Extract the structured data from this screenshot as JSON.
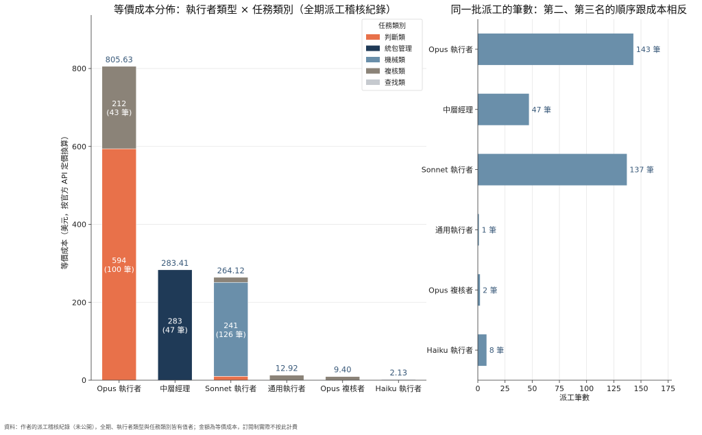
{
  "colors": {
    "judgment": "#e8714a",
    "orchestrate": "#1f3a57",
    "mechanical": "#6a8faa",
    "review": "#8b8378",
    "search": "#c6cacf",
    "hbar": "#6a8faa",
    "value_text": "#3a5a7a",
    "grid": "#e5e5e5"
  },
  "footnote": "資料：作者的派工稽核紀錄（未公開），全期、執行者類型與任務類別皆有值者；金額為等價成本，訂閱制實際不按此計費",
  "chart_data": [
    {
      "type": "bar",
      "stacked": true,
      "title": "等價成本分佈：執行者類型 × 任務類別（全期派工稽核紀錄）",
      "xlabel": "",
      "ylabel": "等價成本（美元，按官方 API 定價換算）",
      "ylim": [
        0,
        935
      ],
      "yticks": [
        0,
        200,
        400,
        600,
        800
      ],
      "grid": true,
      "legend": {
        "title": "任務類別",
        "placement": "top-right",
        "entries": [
          "判斷類",
          "統包管理",
          "機械類",
          "複核類",
          "查找類"
        ]
      },
      "categories": [
        "Opus 執行者",
        "中層經理",
        "Sonnet 執行者",
        "通用執行者",
        "Opus 複核者",
        "Haiku 執行者"
      ],
      "series": [
        {
          "name": "判斷類",
          "color_key": "judgment",
          "values": [
            594,
            0,
            10,
            0,
            0,
            0
          ]
        },
        {
          "name": "統包管理",
          "color_key": "orchestrate",
          "values": [
            0,
            283.41,
            0,
            0,
            0,
            0
          ]
        },
        {
          "name": "機械類",
          "color_key": "mechanical",
          "values": [
            0,
            0,
            241,
            0,
            0,
            0
          ]
        },
        {
          "name": "複核類",
          "color_key": "review",
          "values": [
            211.63,
            0,
            13.12,
            12.92,
            9.4,
            0
          ]
        },
        {
          "name": "查找類",
          "color_key": "search",
          "values": [
            0,
            0,
            0,
            0,
            0,
            2.13
          ]
        }
      ],
      "totals": [
        "805.63",
        "283.41",
        "264.12",
        "12.92",
        "9.40",
        "2.13"
      ],
      "segment_labels": [
        {
          "category": 0,
          "series": 0,
          "lines": [
            "594",
            "(100 筆)"
          ]
        },
        {
          "category": 0,
          "series": 3,
          "lines": [
            "212",
            "(43 筆)"
          ]
        },
        {
          "category": 1,
          "series": 1,
          "lines": [
            "283",
            "(47 筆)"
          ]
        },
        {
          "category": 2,
          "series": 2,
          "lines": [
            "241",
            "(126 筆)"
          ]
        }
      ]
    },
    {
      "type": "bar",
      "orientation": "horizontal",
      "title": "同一批派工的筆數：第二、第三名的順序跟成本相反",
      "xlabel": "派工筆數",
      "ylabel": "",
      "xlim": [
        0,
        180
      ],
      "xticks": [
        0,
        25,
        50,
        75,
        100,
        125,
        150,
        175
      ],
      "grid": true,
      "categories": [
        "Opus 執行者",
        "中層經理",
        "Sonnet 執行者",
        "通用執行者",
        "Opus 複核者",
        "Haiku 執行者"
      ],
      "values": [
        143,
        47,
        137,
        1,
        2,
        8
      ],
      "value_labels": [
        "143 筆",
        "47 筆",
        "137 筆",
        "1 筆",
        "2 筆",
        "8 筆"
      ]
    }
  ]
}
